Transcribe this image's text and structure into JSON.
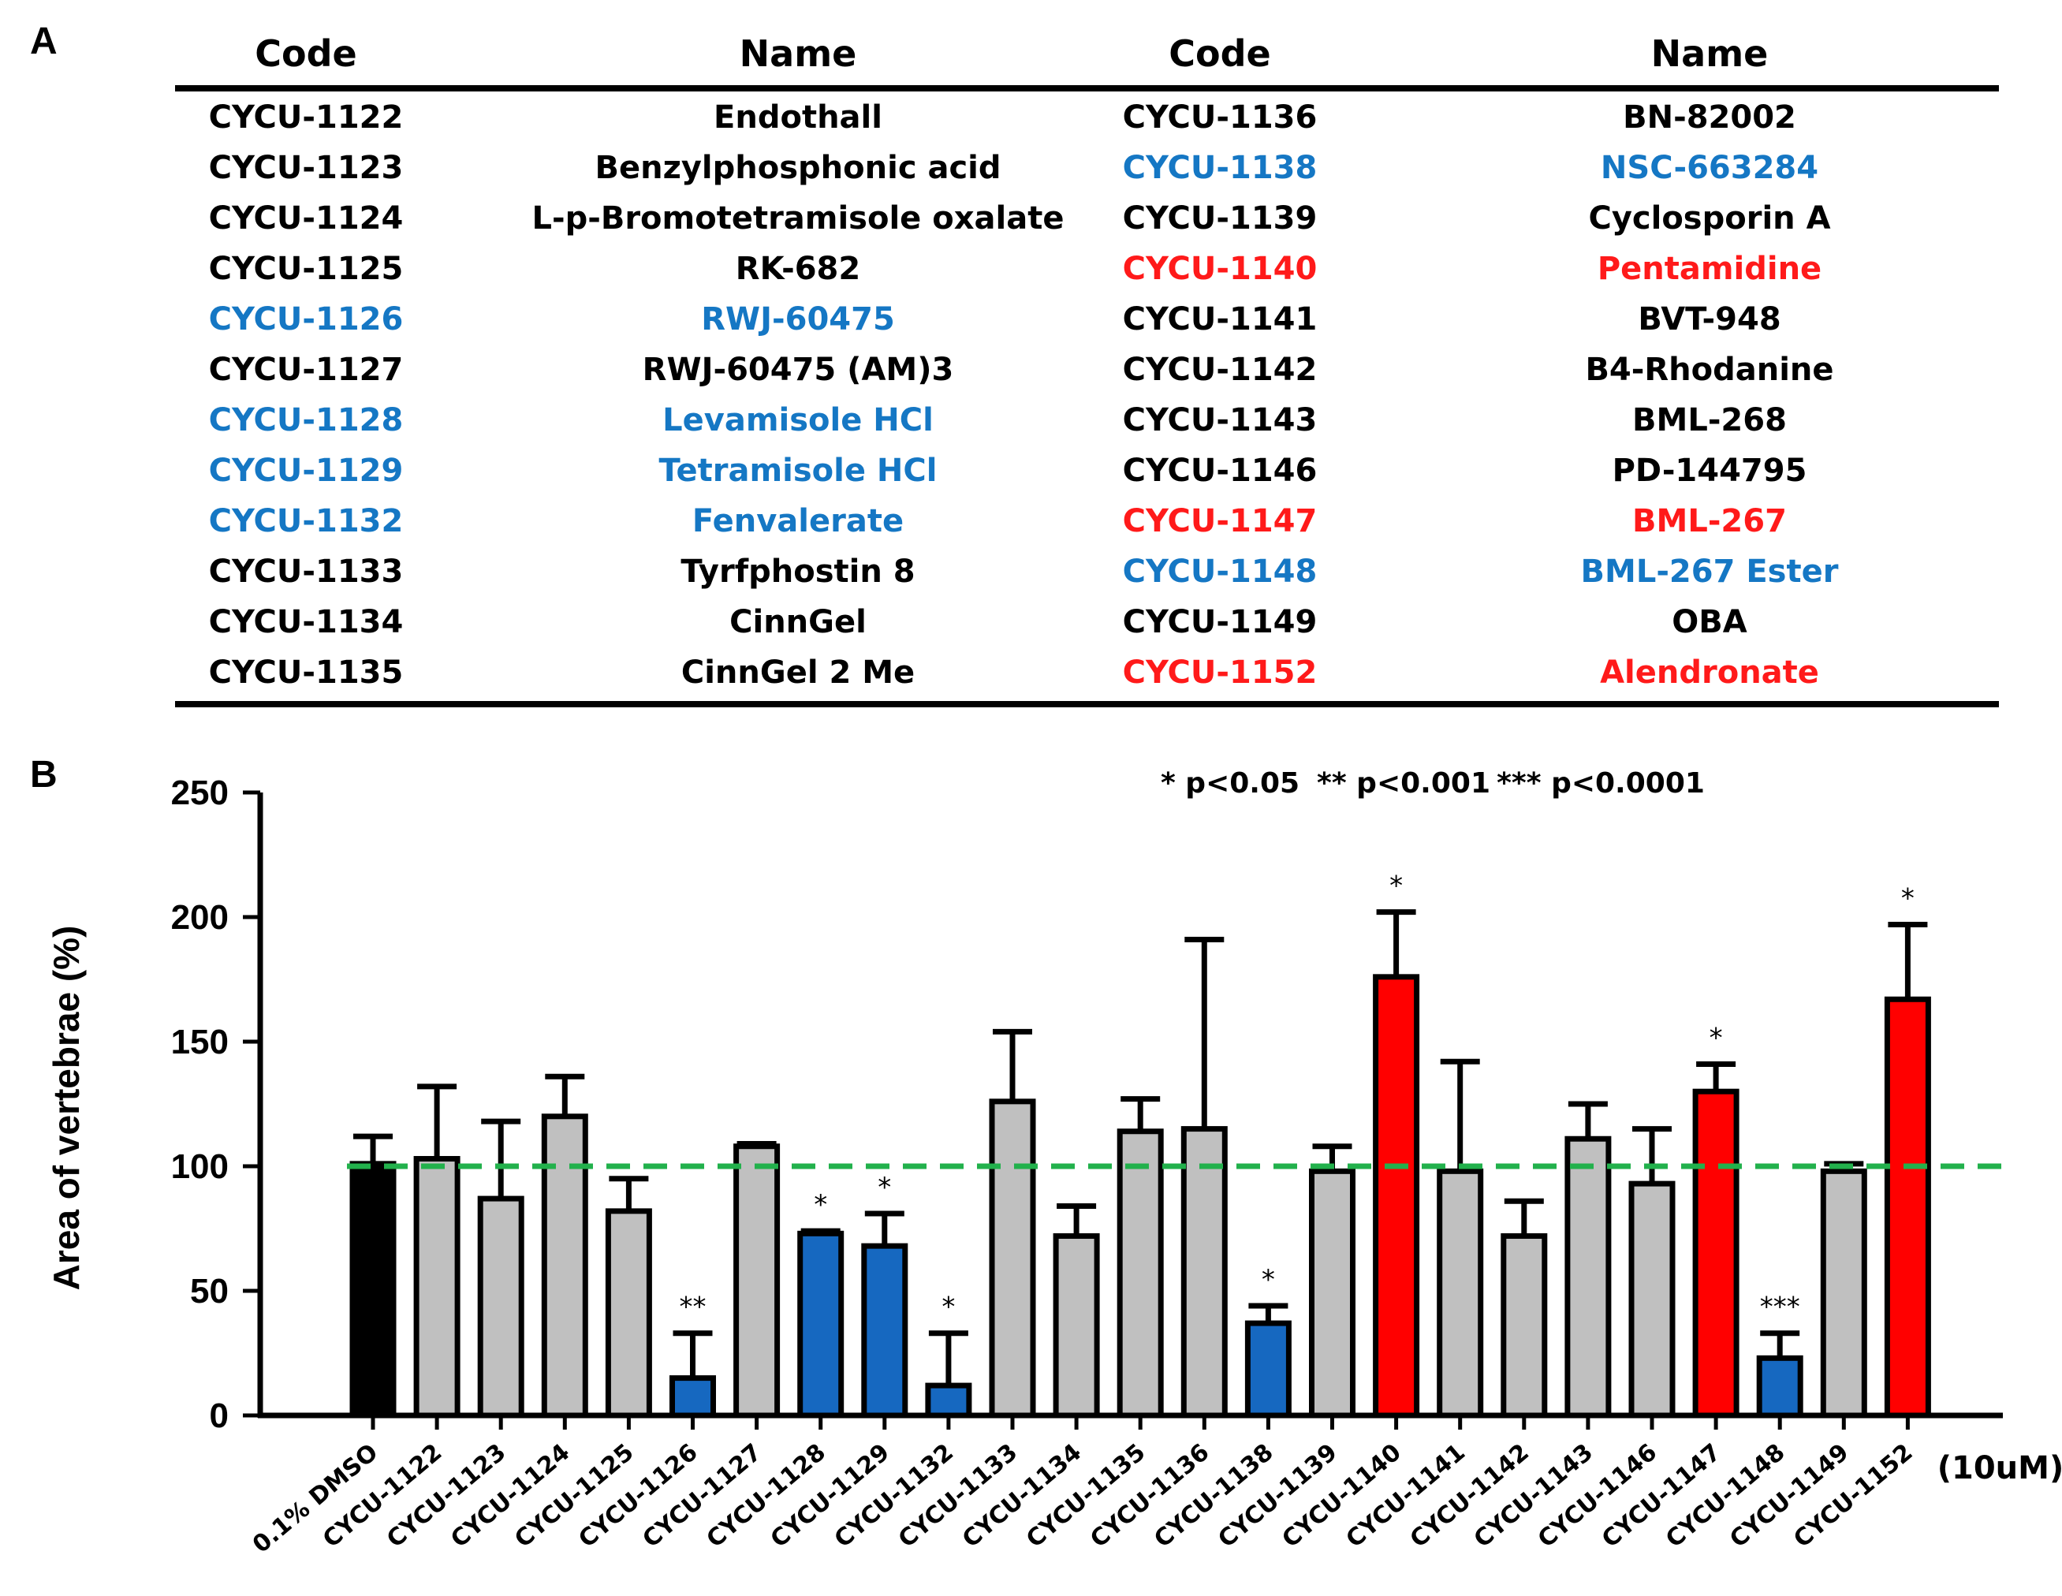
{
  "panel_a": {
    "label": "A",
    "headers": [
      "Code",
      "Name",
      "Code",
      "Name"
    ],
    "rows": [
      {
        "left_code": "CYCU-1122",
        "left_name": "Endothall",
        "left_color": "#000000",
        "right_code": "CYCU-1136",
        "right_name": "BN-82002",
        "right_color": "#000000"
      },
      {
        "left_code": "CYCU-1123",
        "left_name": "Benzylphosphonic acid",
        "left_color": "#000000",
        "right_code": "CYCU-1138",
        "right_name": "NSC-663284",
        "right_color": "#1577c4"
      },
      {
        "left_code": "CYCU-1124",
        "left_name": "L-p-Bromotetramisole oxalate",
        "left_color": "#000000",
        "right_code": "CYCU-1139",
        "right_name": "Cyclosporin A",
        "right_color": "#000000"
      },
      {
        "left_code": "CYCU-1125",
        "left_name": "RK-682",
        "left_color": "#000000",
        "right_code": "CYCU-1140",
        "right_name": "Pentamidine",
        "right_color": "#ff1a1a"
      },
      {
        "left_code": "CYCU-1126",
        "left_name": "RWJ-60475",
        "left_color": "#1577c4",
        "right_code": "CYCU-1141",
        "right_name": "BVT-948",
        "right_color": "#000000"
      },
      {
        "left_code": "CYCU-1127",
        "left_name": "RWJ-60475 (AM)3",
        "left_color": "#000000",
        "right_code": "CYCU-1142",
        "right_name": "B4-Rhodanine",
        "right_color": "#000000"
      },
      {
        "left_code": "CYCU-1128",
        "left_name": "Levamisole HCl",
        "left_color": "#1577c4",
        "right_code": "CYCU-1143",
        "right_name": "BML-268",
        "right_color": "#000000"
      },
      {
        "left_code": "CYCU-1129",
        "left_name": "Tetramisole HCl",
        "left_color": "#1577c4",
        "right_code": "CYCU-1146",
        "right_name": "PD-144795",
        "right_color": "#000000"
      },
      {
        "left_code": "CYCU-1132",
        "left_name": "Fenvalerate",
        "left_color": "#1577c4",
        "right_code": "CYCU-1147",
        "right_name": "BML-267",
        "right_color": "#ff1a1a"
      },
      {
        "left_code": "CYCU-1133",
        "left_name": "Tyrfphostin 8",
        "left_color": "#000000",
        "right_code": "CYCU-1148",
        "right_name": "BML-267 Ester",
        "right_color": "#1577c4"
      },
      {
        "left_code": "CYCU-1134",
        "left_name": "CinnGel",
        "left_color": "#000000",
        "right_code": "CYCU-1149",
        "right_name": "OBA",
        "right_color": "#000000"
      },
      {
        "left_code": "CYCU-1135",
        "left_name": "CinnGel 2 Me",
        "left_color": "#000000",
        "right_code": "CYCU-1152",
        "right_name": "Alendronate",
        "right_color": "#ff1a1a"
      }
    ]
  },
  "chart_data": {
    "panel_label": "B",
    "type": "bar",
    "title": "",
    "xlabel": "",
    "ylabel": "Area of vertebrae (%)",
    "ylim": [
      0,
      250
    ],
    "yticks": [
      0,
      50,
      100,
      150,
      200,
      250
    ],
    "reference_line": {
      "value": 100,
      "style": "dashed",
      "color": "#22b14c"
    },
    "unit_label": "(10uM)",
    "legend_text": [
      "* p<0.05",
      "** p<0.001",
      "*** p<0.0001"
    ],
    "categories": [
      "0.1% DMSO",
      "CYCU-1122",
      "CYCU-1123",
      "CYCU-1124",
      "CYCU-1125",
      "CYCU-1126",
      "CYCU-1127",
      "CYCU-1128",
      "CYCU-1129",
      "CYCU-1132",
      "CYCU-1133",
      "CYCU-1134",
      "CYCU-1135",
      "CYCU-1136",
      "CYCU-1138",
      "CYCU-1139",
      "CYCU-1140",
      "CYCU-1141",
      "CYCU-1142",
      "CYCU-1143",
      "CYCU-1146",
      "CYCU-1147",
      "CYCU-1148",
      "CYCU-1149",
      "CYCU-1152"
    ],
    "values": [
      101,
      103,
      87,
      120,
      82,
      15,
      108,
      73,
      68,
      12,
      126,
      72,
      114,
      115,
      37,
      98,
      176,
      98,
      72,
      111,
      93,
      130,
      23,
      98,
      167
    ],
    "errors": [
      11,
      29,
      31,
      16,
      13,
      18,
      1,
      1,
      13,
      21,
      28,
      12,
      13,
      76,
      7,
      10,
      26,
      44,
      14,
      14,
      22,
      11,
      10,
      3,
      30
    ],
    "colors": [
      "#000000",
      "#c0c0c0",
      "#c0c0c0",
      "#c0c0c0",
      "#c0c0c0",
      "#1668c0",
      "#c0c0c0",
      "#1668c0",
      "#1668c0",
      "#1668c0",
      "#c0c0c0",
      "#c0c0c0",
      "#c0c0c0",
      "#c0c0c0",
      "#1668c0",
      "#c0c0c0",
      "#ff0000",
      "#c0c0c0",
      "#c0c0c0",
      "#c0c0c0",
      "#c0c0c0",
      "#ff0000",
      "#1668c0",
      "#c0c0c0",
      "#ff0000"
    ],
    "significance": [
      "",
      "",
      "",
      "",
      "",
      "**",
      "",
      "*",
      "*",
      "*",
      "",
      "",
      "",
      "",
      "*",
      "",
      "*",
      "",
      "",
      "",
      "",
      "*",
      "***",
      "",
      "*"
    ]
  }
}
